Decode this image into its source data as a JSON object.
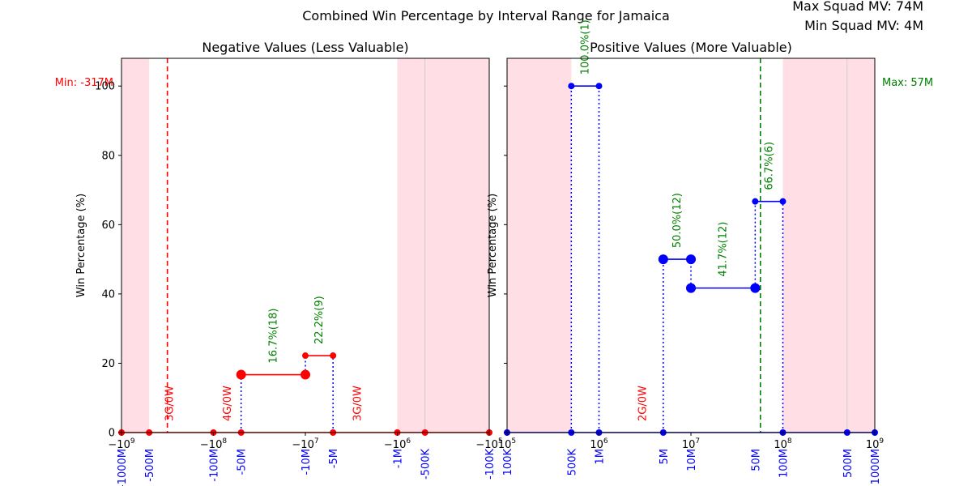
{
  "figure": {
    "title": "Combined Win Percentage by Interval Range for Jamaica",
    "info_max": "Max Squad MV: 74M",
    "info_min": "Min Squad MV: 4M"
  },
  "colors": {
    "neg": "#ff0000",
    "pos": "#0000ff",
    "green": "#008000",
    "shade": "#ffc0cb",
    "blue_label": "#0000ff"
  },
  "chart_data": [
    {
      "id": "neg",
      "type": "line",
      "title": "Negative Values (Less Valuable)",
      "ylabel": "Win Percentage (%)",
      "xscale": "symlog",
      "xlim": [
        -1000000000,
        -100000
      ],
      "ylim": [
        0,
        108
      ],
      "yticks": [
        0,
        20,
        40,
        60,
        80,
        100
      ],
      "xticks_math": [
        {
          "value": -1000000000,
          "base": "−10",
          "exp": "9"
        },
        {
          "value": -100000000,
          "base": "−10",
          "exp": "8"
        },
        {
          "value": -10000000,
          "base": "−10",
          "exp": "7"
        },
        {
          "value": -1000000,
          "base": "−10",
          "exp": "6"
        },
        {
          "value": -100000,
          "base": "−10",
          "exp": "5"
        }
      ],
      "xticks_blue": [
        {
          "value": -1000000000,
          "label": "-1000M"
        },
        {
          "value": -500000000,
          "label": "-500M"
        },
        {
          "value": -100000000,
          "label": "-100M"
        },
        {
          "value": -50000000,
          "label": "-50M"
        },
        {
          "value": -10000000,
          "label": "-10M"
        },
        {
          "value": -5000000,
          "label": "-5M"
        },
        {
          "value": -1000000,
          "label": "-1M"
        },
        {
          "value": -500000,
          "label": "-500K"
        },
        {
          "value": -100000,
          "label": "-100K"
        }
      ],
      "shaded": [
        [
          -1000000000,
          -500000000
        ],
        [
          -1000000,
          -100000
        ]
      ],
      "gray_lines": [
        -500000
      ],
      "ref_line": {
        "value": -317000000,
        "label": "Min: -317M"
      },
      "segments": [
        {
          "x1": -50000000,
          "x2": -10000000,
          "y": 16.7,
          "label": "16.7%(18)",
          "big": true
        },
        {
          "x1": -10000000,
          "x2": -5000000,
          "y": 22.2,
          "label": "22.2%(9)",
          "big": false
        }
      ],
      "zero_points": [
        -1000000000,
        -500000000,
        -100000000,
        -50000000,
        -5000000,
        -1000000,
        -500000,
        -100000
      ],
      "dotted_lines": [
        {
          "x": -50000000,
          "y1": 0,
          "y2": 16.7
        },
        {
          "x": -10000000,
          "y1": 16.7,
          "y2": 22.2
        },
        {
          "x": -5000000,
          "y1": 0,
          "y2": 22.2
        }
      ],
      "gw_labels": [
        {
          "x": -300000000,
          "label": "3G/0W"
        },
        {
          "x": -70000000,
          "label": "4G/0W"
        },
        {
          "x": -2700000,
          "label": "3G/0W"
        }
      ]
    },
    {
      "id": "pos",
      "type": "line",
      "title": "Positive Values (More Valuable)",
      "ylabel": "Win Percentage (%)",
      "xscale": "log",
      "xlim": [
        100000,
        1000000000
      ],
      "ylim": [
        0,
        108
      ],
      "yticks": [
        0,
        20,
        40,
        60,
        80,
        100
      ],
      "xticks_math": [
        {
          "value": 100000,
          "base": "10",
          "exp": "5"
        },
        {
          "value": 1000000,
          "base": "10",
          "exp": "6"
        },
        {
          "value": 10000000,
          "base": "10",
          "exp": "7"
        },
        {
          "value": 100000000,
          "base": "10",
          "exp": "8"
        },
        {
          "value": 1000000000,
          "base": "10",
          "exp": "9"
        }
      ],
      "xticks_blue": [
        {
          "value": 100000,
          "label": "100K"
        },
        {
          "value": 500000,
          "label": "500K"
        },
        {
          "value": 1000000,
          "label": "1M"
        },
        {
          "value": 5000000,
          "label": "5M"
        },
        {
          "value": 10000000,
          "label": "10M"
        },
        {
          "value": 50000000,
          "label": "50M"
        },
        {
          "value": 100000000,
          "label": "100M"
        },
        {
          "value": 500000000,
          "label": "500M"
        },
        {
          "value": 1000000000,
          "label": "1000M"
        }
      ],
      "shaded": [
        [
          100000,
          500000
        ],
        [
          100000000,
          1000000000
        ]
      ],
      "gray_lines": [
        500000000
      ],
      "ref_line": {
        "value": 57000000,
        "label": "Max: 57M"
      },
      "segments": [
        {
          "x1": 500000,
          "x2": 1000000,
          "y": 100.0,
          "label": "100.0%(1)",
          "big": false
        },
        {
          "x1": 5000000,
          "x2": 10000000,
          "y": 50.0,
          "label": "50.0%(12)",
          "big": true
        },
        {
          "x1": 10000000,
          "x2": 50000000,
          "y": 41.7,
          "label": "41.7%(12)",
          "big": true
        },
        {
          "x1": 50000000,
          "x2": 100000000,
          "y": 66.7,
          "label": "66.7%(6)",
          "big": false
        }
      ],
      "zero_points": [
        100000,
        500000,
        1000000,
        5000000,
        100000000,
        500000000,
        1000000000
      ],
      "dotted_lines": [
        {
          "x": 500000,
          "y1": 0,
          "y2": 100
        },
        {
          "x": 1000000,
          "y1": 0,
          "y2": 100
        },
        {
          "x": 5000000,
          "y1": 0,
          "y2": 50
        },
        {
          "x": 10000000,
          "y1": 41.7,
          "y2": 50
        },
        {
          "x": 50000000,
          "y1": 41.7,
          "y2": 66.7
        },
        {
          "x": 100000000,
          "y1": 0,
          "y2": 66.7
        }
      ],
      "gw_labels": [
        {
          "x": 3000000,
          "label": "2G/0W"
        }
      ]
    }
  ]
}
